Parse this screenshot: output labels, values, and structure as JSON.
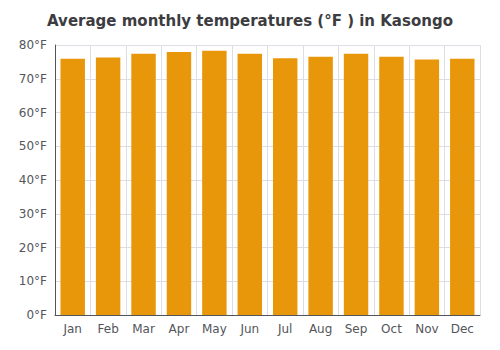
{
  "chart_data": {
    "type": "bar",
    "title": "Average monthly temperatures (°F ) in Kasongo",
    "categories": [
      "Jan",
      "Feb",
      "Mar",
      "Apr",
      "May",
      "Jun",
      "Jul",
      "Aug",
      "Sep",
      "Oct",
      "Nov",
      "Dec"
    ],
    "values": [
      75.9,
      76.3,
      77.4,
      77.9,
      78.3,
      77.4,
      76.1,
      76.5,
      77.4,
      76.5,
      75.7,
      75.9
    ],
    "color": "#E8960A",
    "ylim": [
      0,
      80
    ],
    "yticks": [
      {
        "value": 0,
        "label": "0°F"
      },
      {
        "value": 10,
        "label": "10°F"
      },
      {
        "value": 20,
        "label": "20°F"
      },
      {
        "value": 30,
        "label": "30°F"
      },
      {
        "value": 40,
        "label": "40°F"
      },
      {
        "value": 50,
        "label": "50°F"
      },
      {
        "value": 60,
        "label": "60°F"
      },
      {
        "value": 70,
        "label": "70°F"
      },
      {
        "value": 80,
        "label": "80°F"
      }
    ],
    "grid": true
  }
}
